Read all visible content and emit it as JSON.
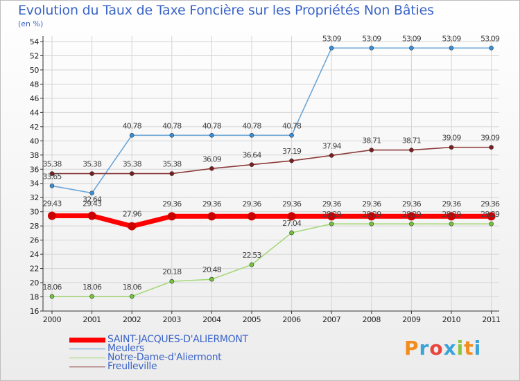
{
  "title": "Evolution du Taux de Taxe Foncière sur les Propriétés Non Bâties",
  "unit_label": "(en %)",
  "logo": {
    "text": "Proxiti",
    "letters": [
      {
        "ch": "P",
        "color": "#f28c1e"
      },
      {
        "ch": "r",
        "color": "#3aa3d9"
      },
      {
        "ch": "o",
        "color": "#e8453c"
      },
      {
        "ch": "x",
        "color": "#3aa3d9"
      },
      {
        "ch": "i",
        "color": "#8cc63f"
      },
      {
        "ch": "t",
        "color": "#f28c1e"
      },
      {
        "ch": "i",
        "color": "#3aa3d9"
      }
    ]
  },
  "legend": [
    {
      "label": "SAINT-JACQUES-D'ALIERMONT",
      "color": "#ff0000",
      "width": 7
    },
    {
      "label": "Meulers",
      "color": "#6ca6d6",
      "width": 1.5
    },
    {
      "label": "Notre-Dame-d'Aliermont",
      "color": "#a6d87a",
      "width": 1.5
    },
    {
      "label": "Freulleville",
      "color": "#8b3a3a",
      "width": 1.5
    }
  ],
  "chart_data": {
    "type": "line",
    "title": "Evolution du Taux de Taxe Foncière sur les Propriétés Non Bâties",
    "ylabel": "(en %)",
    "xlabel": "",
    "categories": [
      "2000",
      "2001",
      "2002",
      "2003",
      "2004",
      "2005",
      "2006",
      "2007",
      "2008",
      "2009",
      "2010",
      "2011"
    ],
    "ylim": [
      16,
      54
    ],
    "yticks": [
      16,
      18,
      20,
      22,
      24,
      26,
      28,
      30,
      32,
      34,
      36,
      38,
      40,
      42,
      44,
      46,
      48,
      50,
      52,
      54
    ],
    "grid": true,
    "series": [
      {
        "name": "Meulers",
        "color": "#6ca6d6",
        "marker": "#3b8fd6",
        "values": [
          33.65,
          32.64,
          40.78,
          40.78,
          40.78,
          40.78,
          40.78,
          53.09,
          53.09,
          53.09,
          53.09,
          53.09
        ],
        "labels": [
          "33.65",
          "32.64",
          "40.78",
          "40.78",
          "40.78",
          "40.78",
          "40.78",
          "53.09",
          "53.09",
          "53.09",
          "53.09",
          "53.09"
        ]
      },
      {
        "name": "Freulleville",
        "color": "#8b3a3a",
        "marker": "#7a1f1f",
        "values": [
          35.38,
          35.38,
          35.38,
          35.38,
          36.09,
          36.64,
          37.19,
          37.94,
          38.71,
          38.71,
          39.09,
          39.09
        ],
        "labels": [
          "35.38",
          "35.38",
          "35.38",
          "35.38",
          "36.09",
          "36.64",
          "37.19",
          "37.94",
          "38.71",
          "38.71",
          "39.09",
          "39.09"
        ]
      },
      {
        "name": "Notre-Dame-d'Aliermont",
        "color": "#a6d87a",
        "marker": "#74c43c",
        "values": [
          18.06,
          18.06,
          18.06,
          20.18,
          20.48,
          22.53,
          27.04,
          28.29,
          28.29,
          28.29,
          28.29,
          28.29
        ],
        "labels": [
          "18.06",
          "18.06",
          "18.06",
          "20.18",
          "20.48",
          "22.53",
          "27.04",
          "28.29",
          "28.29",
          "28.29",
          "28.29",
          "28.29"
        ]
      },
      {
        "name": "SAINT-JACQUES-D'ALIERMONT",
        "color": "#ff0000",
        "marker": "#cc0000",
        "values": [
          29.43,
          29.43,
          27.96,
          29.36,
          29.36,
          29.36,
          29.36,
          29.36,
          29.36,
          29.36,
          29.36,
          29.36
        ],
        "labels": [
          "29.43",
          "29.43",
          "27.96",
          "29.36",
          "29.36",
          "29.36",
          "29.36",
          "29.36",
          "29.36",
          "29.36",
          "29.36",
          "29.36"
        ]
      }
    ]
  }
}
